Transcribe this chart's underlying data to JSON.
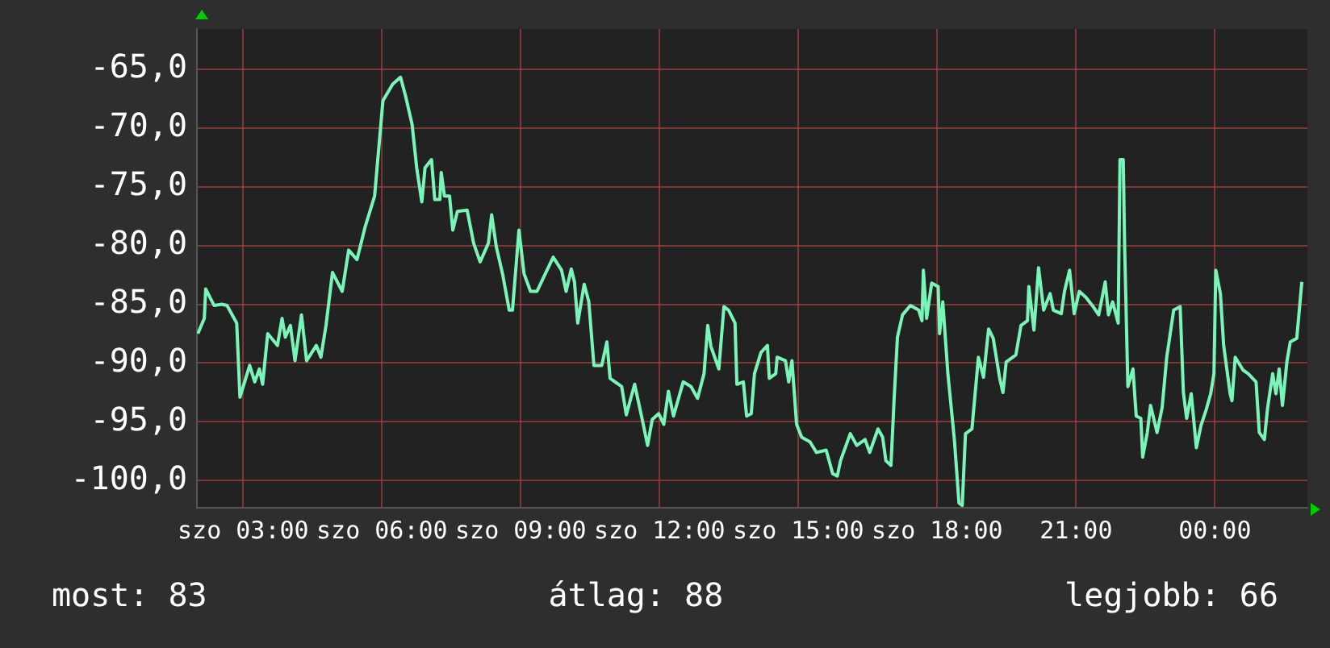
{
  "chart_data": {
    "type": "line",
    "xlim": [
      2,
      26
    ],
    "xticks": [
      {
        "value": 3,
        "label": "szo 03:00"
      },
      {
        "value": 6,
        "label": "szo 06:00"
      },
      {
        "value": 9,
        "label": "szo 09:00"
      },
      {
        "value": 12,
        "label": "szo 12:00"
      },
      {
        "value": 15,
        "label": "szo 15:00"
      },
      {
        "value": 18,
        "label": "szo 18:00"
      },
      {
        "value": 21,
        "label": "21:00"
      },
      {
        "value": 24,
        "label": "00:00"
      }
    ],
    "ylim": [
      -102.3,
      -61.6
    ],
    "yticks": [
      {
        "value": -100,
        "label": "-100,0"
      },
      {
        "value": -95,
        "label": "-95,0"
      },
      {
        "value": -90,
        "label": "-90,0"
      },
      {
        "value": -85,
        "label": "-85,0"
      },
      {
        "value": -80,
        "label": "-80,0"
      },
      {
        "value": -75,
        "label": "-75,0"
      },
      {
        "value": -70,
        "label": "-70,0"
      },
      {
        "value": -65,
        "label": "-65,0"
      }
    ],
    "grid": true,
    "marker": "none",
    "line_style": "solid",
    "legend": false,
    "annotations": [
      "most: 83",
      "átlag: 88",
      "legjobb: 66"
    ],
    "series": [
      {
        "color": "#7af5b8",
        "x": [
          2.02,
          2.16,
          2.19,
          2.37,
          2.54,
          2.65,
          2.86,
          2.93,
          3.14,
          3.25,
          3.35,
          3.42,
          3.53,
          3.74,
          3.84,
          3.91,
          4.02,
          4.12,
          4.26,
          4.37,
          4.58,
          4.68,
          4.79,
          4.93,
          5.14,
          5.28,
          5.46,
          5.63,
          5.84,
          6.02,
          6.23,
          6.4,
          6.51,
          6.65,
          6.75,
          6.86,
          6.93,
          7.07,
          7.14,
          7.25,
          7.28,
          7.35,
          7.46,
          7.53,
          7.63,
          7.84,
          7.98,
          8.12,
          8.3,
          8.37,
          8.47,
          8.61,
          8.75,
          8.82,
          8.96,
          9.07,
          9.21,
          9.35,
          9.53,
          9.7,
          9.88,
          9.98,
          10.09,
          10.16,
          10.23,
          10.37,
          10.47,
          10.58,
          10.75,
          10.86,
          10.93,
          11.18,
          11.28,
          11.46,
          11.63,
          11.74,
          11.84,
          11.98,
          12.09,
          12.19,
          12.3,
          12.51,
          12.68,
          12.82,
          12.96,
          13.04,
          13.11,
          13.28,
          13.39,
          13.49,
          13.63,
          13.67,
          13.81,
          13.88,
          13.98,
          14.05,
          14.19,
          14.33,
          14.37,
          14.51,
          14.54,
          14.72,
          14.79,
          14.86,
          14.96,
          15.07,
          15.25,
          15.39,
          15.6,
          15.74,
          15.84,
          15.91,
          16.12,
          16.26,
          16.44,
          16.54,
          16.72,
          16.82,
          16.89,
          17.0,
          17.07,
          17.14,
          17.25,
          17.42,
          17.6,
          17.67,
          17.7,
          17.77,
          17.88,
          18.02,
          18.05,
          18.12,
          18.23,
          18.37,
          18.47,
          18.54,
          18.61,
          18.75,
          18.89,
          19.0,
          19.11,
          19.21,
          19.35,
          19.42,
          19.49,
          19.7,
          19.81,
          19.95,
          19.98,
          20.09,
          20.19,
          20.3,
          20.44,
          20.51,
          20.68,
          20.75,
          20.86,
          20.96,
          21.07,
          21.21,
          21.35,
          21.49,
          21.63,
          21.7,
          21.79,
          21.91,
          21.95,
          22.02,
          22.05,
          22.12,
          22.23,
          22.3,
          22.4,
          22.44,
          22.54,
          22.61,
          22.75,
          22.86,
          22.96,
          23.11,
          23.25,
          23.32,
          23.39,
          23.49,
          23.6,
          23.7,
          23.81,
          23.91,
          23.98,
          24.02,
          24.12,
          24.19,
          24.33,
          24.37,
          24.44,
          24.61,
          24.72,
          24.89,
          24.96,
          25.07,
          25.14,
          25.25,
          25.32,
          25.39,
          25.46,
          25.56,
          25.63,
          25.77,
          25.88
        ],
        "values": [
          -87.5,
          -86.2,
          -83.7,
          -85.1,
          -85.0,
          -85.1,
          -86.6,
          -92.9,
          -90.2,
          -91.6,
          -90.5,
          -91.8,
          -87.5,
          -88.5,
          -86.2,
          -87.8,
          -86.8,
          -89.8,
          -85.9,
          -89.8,
          -88.5,
          -89.5,
          -86.8,
          -82.3,
          -83.9,
          -80.4,
          -81.2,
          -78.5,
          -75.8,
          -67.7,
          -66.3,
          -65.7,
          -67.3,
          -69.7,
          -73.4,
          -76.3,
          -73.4,
          -72.7,
          -76.1,
          -76.1,
          -73.8,
          -75.8,
          -75.8,
          -78.7,
          -77.1,
          -77.0,
          -79.8,
          -81.4,
          -79.8,
          -77.4,
          -80.1,
          -82.5,
          -85.5,
          -85.5,
          -78.7,
          -82.4,
          -83.9,
          -83.9,
          -82.4,
          -81.0,
          -82.1,
          -83.9,
          -82.0,
          -83.1,
          -86.6,
          -83.3,
          -84.8,
          -90.2,
          -90.2,
          -88.2,
          -91.3,
          -92.0,
          -94.4,
          -91.8,
          -94.9,
          -97.0,
          -94.8,
          -94.3,
          -95.2,
          -92.4,
          -94.5,
          -91.6,
          -92.0,
          -93.0,
          -90.9,
          -86.8,
          -88.6,
          -90.5,
          -85.2,
          -85.5,
          -86.6,
          -91.8,
          -91.6,
          -94.5,
          -94.3,
          -90.9,
          -89.1,
          -88.5,
          -91.3,
          -90.9,
          -89.5,
          -89.8,
          -91.6,
          -89.8,
          -95.2,
          -96.3,
          -96.7,
          -97.6,
          -97.4,
          -99.4,
          -99.6,
          -98.3,
          -96.0,
          -97.0,
          -96.5,
          -97.6,
          -95.6,
          -96.3,
          -98.3,
          -98.7,
          -92.9,
          -87.8,
          -85.9,
          -85.1,
          -85.5,
          -86.4,
          -82.1,
          -86.2,
          -83.2,
          -83.5,
          -87.5,
          -84.8,
          -90.9,
          -96.5,
          -101.9,
          -102.1,
          -96.0,
          -95.6,
          -89.5,
          -91.2,
          -87.1,
          -87.9,
          -91.3,
          -92.5,
          -89.9,
          -89.3,
          -86.8,
          -86.4,
          -83.5,
          -87.2,
          -81.9,
          -85.5,
          -84.1,
          -85.5,
          -85.8,
          -83.9,
          -82.1,
          -85.8,
          -83.9,
          -84.4,
          -85.1,
          -85.9,
          -83.1,
          -85.9,
          -84.8,
          -86.6,
          -72.7,
          -72.7,
          -80.1,
          -92.0,
          -90.5,
          -94.5,
          -94.7,
          -98.0,
          -95.9,
          -93.6,
          -95.9,
          -93.8,
          -89.5,
          -85.5,
          -85.2,
          -92.5,
          -94.7,
          -92.6,
          -97.2,
          -95.3,
          -94.0,
          -92.6,
          -90.9,
          -82.1,
          -84.1,
          -88.5,
          -92.6,
          -93.2,
          -89.5,
          -90.6,
          -90.9,
          -91.6,
          -95.9,
          -96.5,
          -93.8,
          -90.9,
          -92.6,
          -90.5,
          -93.6,
          -89.8,
          -88.2,
          -87.9,
          -83.1
        ]
      }
    ]
  }
}
